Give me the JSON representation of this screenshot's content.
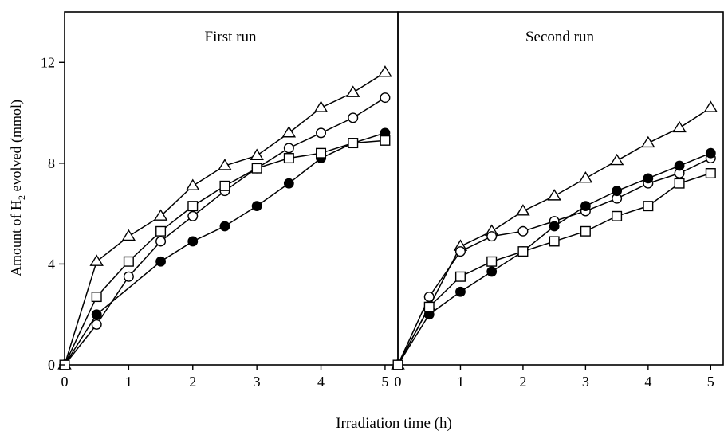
{
  "chart_data": {
    "type": "line",
    "ylabel_parts": {
      "pre": "Amount of H",
      "sub": "2",
      "post": " evolved (mmol)"
    },
    "xlabel": "Irradiation time (h)",
    "ylim": [
      0,
      14
    ],
    "yticks": [
      0,
      4,
      8,
      12
    ],
    "ytick_labels": [
      "0",
      "4",
      "8",
      "12"
    ],
    "colors": {
      "line": "#000000",
      "background": "#ffffff"
    },
    "panels": [
      {
        "title": "First run",
        "xlim": [
          0,
          5.2
        ],
        "xticks": [
          0,
          1,
          2,
          3,
          4,
          5
        ],
        "xtick_labels": [
          "0",
          "1",
          "2",
          "3",
          "4",
          "5"
        ],
        "series": [
          {
            "marker": "open-triangle",
            "x": [
              0,
              0.5,
              1,
              1.5,
              2,
              2.5,
              3,
              3.5,
              4,
              4.5,
              5
            ],
            "y": [
              0,
              4.1,
              5.1,
              5.9,
              7.1,
              7.9,
              8.3,
              9.2,
              10.2,
              10.8,
              11.6
            ]
          },
          {
            "marker": "open-circle",
            "x": [
              0,
              0.5,
              1,
              1.5,
              2,
              2.5,
              3,
              3.5,
              4,
              4.5,
              5
            ],
            "y": [
              0,
              1.6,
              3.5,
              4.9,
              5.9,
              6.9,
              7.8,
              8.6,
              9.2,
              9.8,
              10.6
            ]
          },
          {
            "marker": "filled-circle",
            "x": [
              0,
              0.5,
              1.5,
              2,
              2.5,
              3,
              3.5,
              4,
              4.5,
              5
            ],
            "y": [
              0,
              2.0,
              4.1,
              4.9,
              5.5,
              6.3,
              7.2,
              8.2,
              8.8,
              9.2
            ]
          },
          {
            "marker": "open-square",
            "x": [
              0,
              0.5,
              1,
              1.5,
              2,
              2.5,
              3,
              3.5,
              4,
              4.5,
              5
            ],
            "y": [
              0,
              2.7,
              4.1,
              5.3,
              6.3,
              7.1,
              7.8,
              8.2,
              8.4,
              8.8,
              8.9
            ]
          }
        ]
      },
      {
        "title": "Second run",
        "xlim": [
          0,
          5.2
        ],
        "xticks": [
          0,
          1,
          2,
          3,
          4,
          5
        ],
        "xtick_labels": [
          "0",
          "1",
          "2",
          "3",
          "4",
          "5"
        ],
        "series": [
          {
            "marker": "open-triangle",
            "x": [
              0,
              0.5,
              1,
              1.5,
              2,
              2.5,
              3,
              3.5,
              4,
              4.5,
              5
            ],
            "y": [
              0,
              2.3,
              4.7,
              5.3,
              6.1,
              6.7,
              7.4,
              8.1,
              8.8,
              9.4,
              10.2
            ]
          },
          {
            "marker": "open-circle",
            "x": [
              0,
              0.5,
              1,
              1.5,
              2,
              2.5,
              3,
              3.5,
              4,
              4.5,
              5
            ],
            "y": [
              0,
              2.7,
              4.5,
              5.1,
              5.3,
              5.7,
              6.1,
              6.6,
              7.2,
              7.6,
              8.2
            ]
          },
          {
            "marker": "filled-circle",
            "x": [
              0,
              0.5,
              1,
              1.5,
              2,
              2.5,
              3,
              3.5,
              4,
              4.5,
              5
            ],
            "y": [
              0,
              2.0,
              2.9,
              3.7,
              4.5,
              5.5,
              6.3,
              6.9,
              7.4,
              7.9,
              8.4
            ]
          },
          {
            "marker": "open-square",
            "x": [
              0,
              0.5,
              1,
              1.5,
              2,
              2.5,
              3,
              3.5,
              4,
              4.5,
              5
            ],
            "y": [
              0,
              2.3,
              3.5,
              4.1,
              4.5,
              4.9,
              5.3,
              5.9,
              6.3,
              7.2,
              7.6
            ]
          }
        ]
      }
    ]
  }
}
